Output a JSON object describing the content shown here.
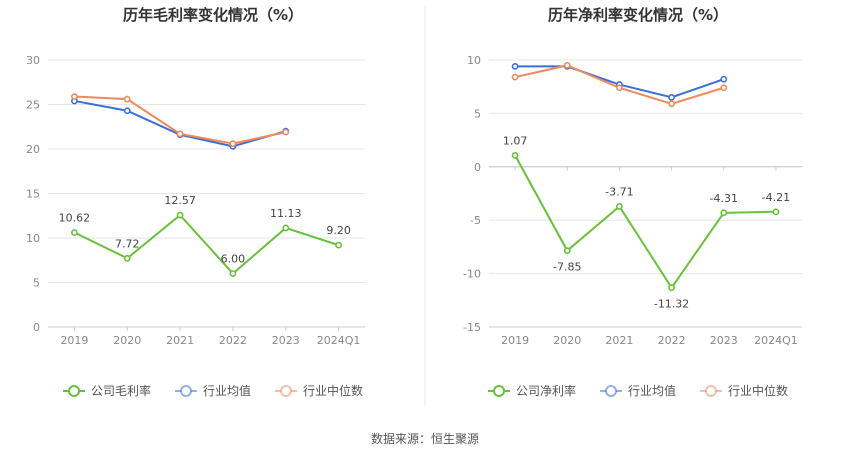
{
  "source": "数据来源：恒生聚源",
  "colors": {
    "company": "#67c23a",
    "industry_avg": "#3a6fd8",
    "industry_median": "#ee8a5c",
    "grid": "#e6e6e6",
    "axis": "#cccccc",
    "divider": "#e8e8e8"
  },
  "chart_data": [
    {
      "type": "line",
      "title": "历年毛利率变化情况（%）",
      "categories": [
        "2019",
        "2020",
        "2021",
        "2022",
        "2023",
        "2024Q1"
      ],
      "ylim": [
        0,
        30
      ],
      "yticks": [
        "0",
        "5",
        "10",
        "15",
        "20",
        "25",
        "30"
      ],
      "grid": true,
      "legend_position": "bottom",
      "series": [
        {
          "name": "公司毛利率",
          "values": [
            10.62,
            7.72,
            12.57,
            6.0,
            11.13,
            9.2
          ],
          "labels": [
            "10.62",
            "7.72",
            "12.57",
            "6.00",
            "11.13",
            "9.20"
          ]
        },
        {
          "name": "行业均值",
          "values": [
            25.4,
            24.3,
            21.6,
            20.3,
            22.0,
            null
          ]
        },
        {
          "name": "行业中位数",
          "values": [
            25.9,
            25.6,
            21.7,
            20.6,
            21.9,
            null
          ]
        }
      ]
    },
    {
      "type": "line",
      "title": "历年净利率变化情况（%）",
      "categories": [
        "2019",
        "2020",
        "2021",
        "2022",
        "2023",
        "2024Q1"
      ],
      "ylim": [
        -15,
        10
      ],
      "yticks": [
        "-15",
        "-10",
        "-5",
        "0",
        "5",
        "10"
      ],
      "grid": true,
      "legend_position": "bottom",
      "series": [
        {
          "name": "公司净利率",
          "values": [
            1.07,
            -7.85,
            -3.71,
            -11.32,
            -4.31,
            -4.21
          ],
          "labels": [
            "1.07",
            "-7.85",
            "-3.71",
            "-11.32",
            "-4.31",
            "-4.21"
          ]
        },
        {
          "name": "行业均值",
          "values": [
            9.4,
            9.4,
            7.7,
            6.5,
            8.2,
            null
          ]
        },
        {
          "name": "行业中位数",
          "values": [
            8.4,
            9.5,
            7.4,
            5.9,
            7.4,
            null
          ]
        }
      ]
    }
  ]
}
